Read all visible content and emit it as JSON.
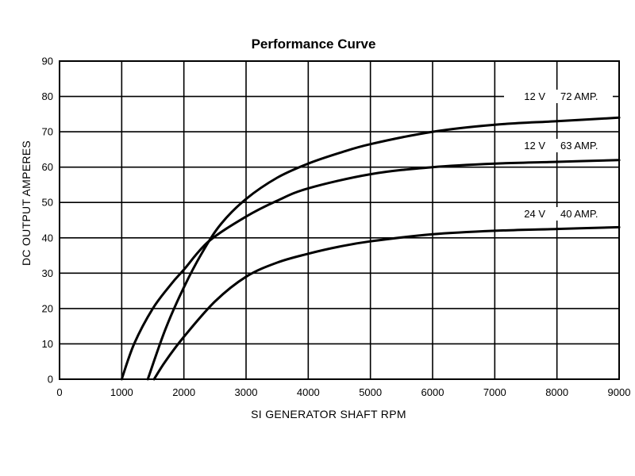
{
  "chart_data": {
    "type": "line",
    "title": "Performance Curve",
    "xlabel": "SI GENERATOR SHAFT RPM",
    "ylabel": "DC OUTPUT AMPERES",
    "xlim": [
      0,
      9000
    ],
    "ylim": [
      0,
      90
    ],
    "x_ticks": [
      0,
      1000,
      2000,
      3000,
      4000,
      5000,
      6000,
      7000,
      8000,
      9000
    ],
    "y_ticks": [
      0,
      10,
      20,
      30,
      40,
      50,
      60,
      70,
      80,
      90
    ],
    "grid": true,
    "series": [
      {
        "name": "12 V 72 AMP.",
        "voltage": "12 V",
        "amperage": "72 AMP.",
        "x": [
          1420,
          1700,
          2000,
          2300,
          2600,
          3000,
          3500,
          4000,
          4500,
          5000,
          6000,
          7000,
          8000,
          9000
        ],
        "y": [
          0,
          14,
          26,
          36,
          44,
          51,
          57,
          61,
          64,
          66.5,
          70,
          72,
          73,
          74
        ]
      },
      {
        "name": "12 V 63 AMP.",
        "voltage": "12 V",
        "amperage": "63 AMP.",
        "x": [
          1000,
          1200,
          1500,
          1800,
          2000,
          2400,
          3000,
          3500,
          4000,
          5000,
          6000,
          7000,
          8000,
          9000
        ],
        "y": [
          0,
          10,
          20,
          27,
          31,
          39,
          46,
          50.5,
          54,
          58,
          60,
          61,
          61.5,
          62
        ]
      },
      {
        "name": "24 V 40 AMP.",
        "voltage": "24 V",
        "amperage": "40 AMP.",
        "x": [
          1520,
          1700,
          2000,
          2500,
          3000,
          3500,
          4000,
          4500,
          5000,
          6000,
          7000,
          8000,
          9000
        ],
        "y": [
          0,
          5,
          12,
          22,
          29,
          33,
          35.5,
          37.5,
          39,
          41,
          42,
          42.5,
          43
        ]
      }
    ]
  }
}
